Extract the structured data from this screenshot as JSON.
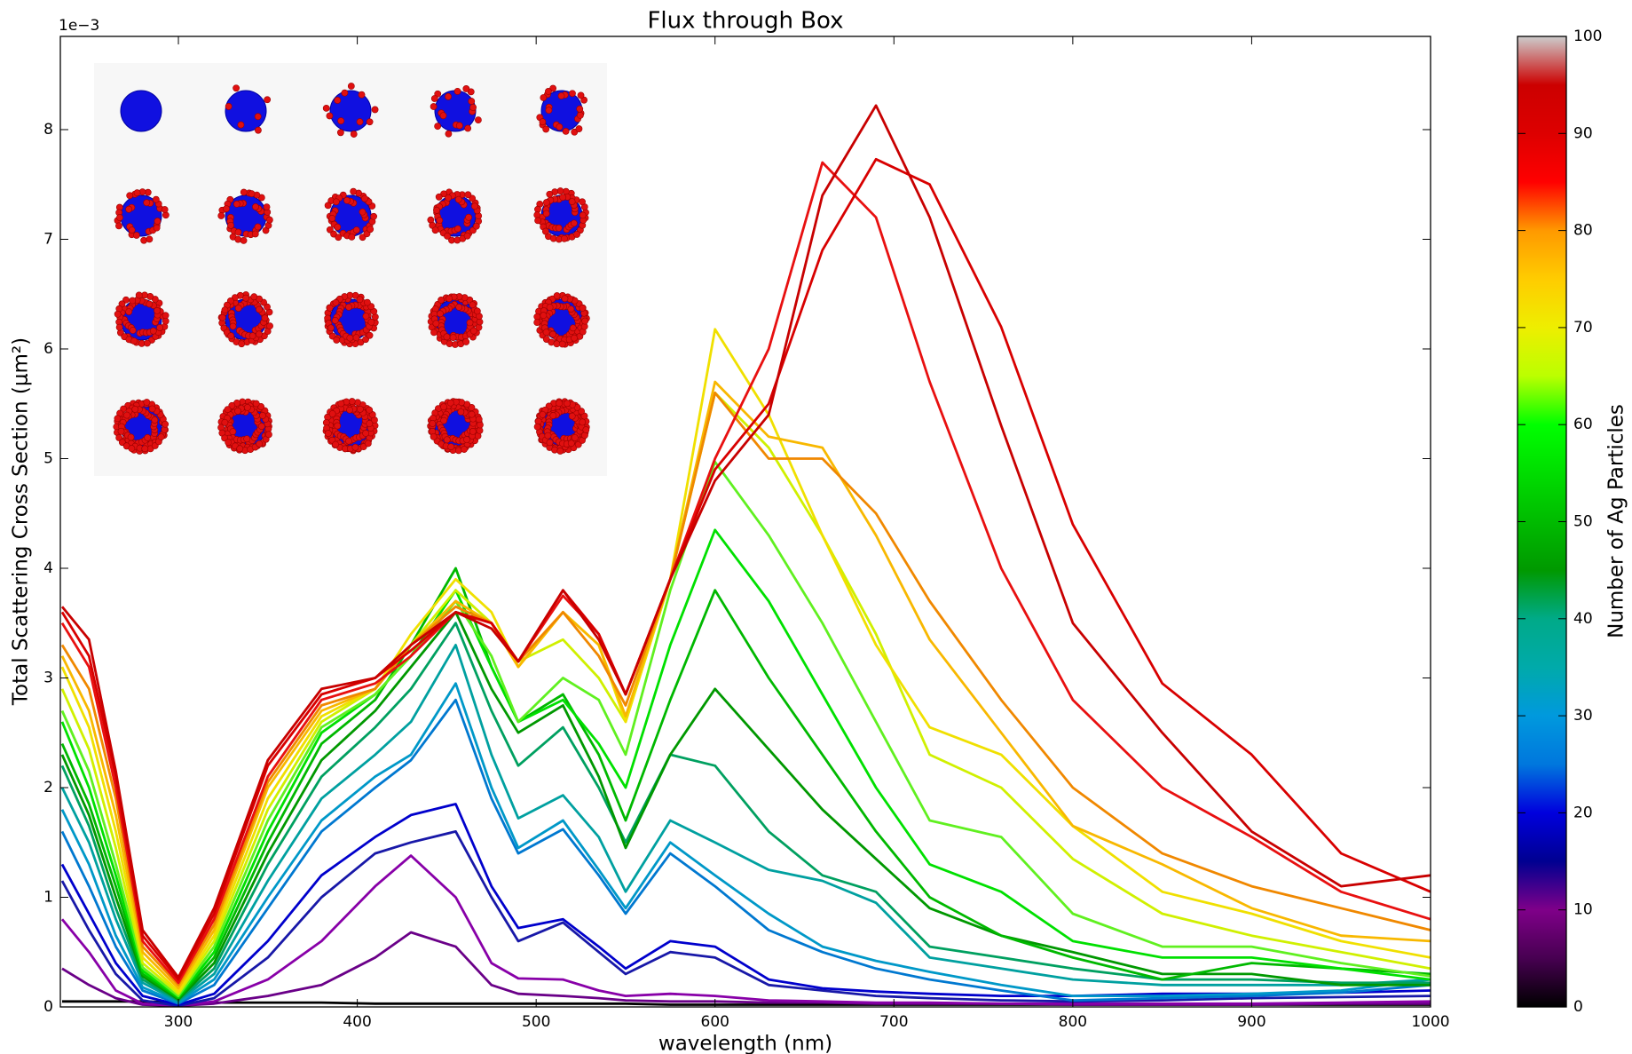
{
  "chart_data": {
    "type": "line",
    "title": "Flux through Box",
    "x_label": "wavelength (nm)",
    "y_label": "Total Scattering Cross Section (μm²)",
    "y_offset_label": "1e−3",
    "x": [
      235,
      250,
      265,
      280,
      300,
      320,
      350,
      380,
      410,
      430,
      455,
      475,
      490,
      515,
      535,
      550,
      575,
      600,
      630,
      660,
      690,
      720,
      760,
      800,
      850,
      900,
      950,
      1000
    ],
    "xlim": [
      234,
      1000
    ],
    "xticks": [
      300,
      400,
      500,
      600,
      700,
      800,
      900,
      1000
    ],
    "ylim": [
      0,
      8.85
    ],
    "yticks": [
      0,
      1,
      2,
      3,
      4,
      5,
      6,
      7,
      8
    ],
    "series": [
      {
        "color": "#000000",
        "values": [
          0.05,
          0.05,
          0.05,
          0.05,
          0.04,
          0.04,
          0.04,
          0.04,
          0.03,
          0.03,
          0.03,
          0.03,
          0.03,
          0.03,
          0.03,
          0.03,
          0.02,
          0.02,
          0.02,
          0.02,
          0.02,
          0.02,
          0.02,
          0.02,
          0.02,
          0.02,
          0.02,
          0.02
        ]
      },
      {
        "color": "#6a0088",
        "values": [
          0.35,
          0.2,
          0.08,
          0.02,
          0.01,
          0.03,
          0.1,
          0.2,
          0.45,
          0.68,
          0.55,
          0.2,
          0.12,
          0.1,
          0.08,
          0.06,
          0.05,
          0.05,
          0.04,
          0.04,
          0.03,
          0.03,
          0.03,
          0.02,
          0.02,
          0.02,
          0.03,
          0.03
        ]
      },
      {
        "color": "#8800a8",
        "values": [
          0.8,
          0.5,
          0.15,
          0.03,
          0.01,
          0.05,
          0.25,
          0.6,
          1.1,
          1.38,
          1.0,
          0.4,
          0.26,
          0.25,
          0.15,
          0.1,
          0.12,
          0.1,
          0.06,
          0.05,
          0.04,
          0.04,
          0.03,
          0.03,
          0.03,
          0.03,
          0.04,
          0.05
        ]
      },
      {
        "color": "#1818a8",
        "values": [
          1.15,
          0.7,
          0.3,
          0.06,
          0.01,
          0.08,
          0.45,
          1.0,
          1.4,
          1.5,
          1.6,
          1.0,
          0.6,
          0.77,
          0.5,
          0.3,
          0.5,
          0.45,
          0.2,
          0.15,
          0.1,
          0.08,
          0.06,
          0.05,
          0.06,
          0.08,
          0.09,
          0.1
        ]
      },
      {
        "color": "#0000cc",
        "values": [
          1.3,
          0.85,
          0.4,
          0.1,
          0.02,
          0.12,
          0.6,
          1.2,
          1.55,
          1.75,
          1.85,
          1.1,
          0.72,
          0.8,
          0.55,
          0.35,
          0.6,
          0.55,
          0.25,
          0.17,
          0.14,
          0.12,
          0.1,
          0.1,
          0.12,
          0.12,
          0.13,
          0.15
        ]
      },
      {
        "color": "#0078d0",
        "values": [
          1.6,
          1.1,
          0.55,
          0.15,
          0.03,
          0.2,
          0.9,
          1.6,
          2.0,
          2.25,
          2.8,
          1.9,
          1.4,
          1.62,
          1.2,
          0.85,
          1.4,
          1.1,
          0.7,
          0.5,
          0.35,
          0.25,
          0.15,
          0.06,
          0.08,
          0.1,
          0.13,
          0.2
        ]
      },
      {
        "color": "#0098c8",
        "values": [
          1.8,
          1.3,
          0.65,
          0.18,
          0.04,
          0.25,
          1.0,
          1.7,
          2.1,
          2.3,
          2.95,
          2.0,
          1.45,
          1.7,
          1.25,
          0.9,
          1.5,
          1.2,
          0.85,
          0.55,
          0.42,
          0.32,
          0.2,
          0.1,
          0.1,
          0.12,
          0.15,
          0.25
        ]
      },
      {
        "color": "#00a0a0",
        "values": [
          2.0,
          1.5,
          0.8,
          0.22,
          0.05,
          0.3,
          1.15,
          1.9,
          2.3,
          2.6,
          3.3,
          2.3,
          1.72,
          1.93,
          1.55,
          1.05,
          1.7,
          1.5,
          1.25,
          1.15,
          0.95,
          0.45,
          0.35,
          0.25,
          0.2,
          0.2,
          0.2,
          0.25
        ]
      },
      {
        "color": "#00a060",
        "values": [
          2.2,
          1.65,
          0.9,
          0.25,
          0.06,
          0.35,
          1.3,
          2.1,
          2.55,
          2.9,
          3.5,
          2.7,
          2.2,
          2.55,
          2.0,
          1.5,
          2.3,
          2.2,
          1.6,
          1.2,
          1.05,
          0.55,
          0.45,
          0.35,
          0.25,
          0.25,
          0.22,
          0.22
        ]
      },
      {
        "color": "#009800",
        "values": [
          2.3,
          1.75,
          1.0,
          0.28,
          0.07,
          0.4,
          1.4,
          2.25,
          2.7,
          3.1,
          3.6,
          2.9,
          2.5,
          2.75,
          2.1,
          1.45,
          2.3,
          2.9,
          2.35,
          1.8,
          1.35,
          0.9,
          0.65,
          0.5,
          0.3,
          0.3,
          0.2,
          0.2
        ]
      },
      {
        "color": "#00b800",
        "values": [
          2.4,
          1.85,
          1.1,
          0.3,
          0.08,
          0.45,
          1.5,
          2.4,
          2.8,
          3.3,
          4.0,
          3.1,
          2.6,
          2.85,
          2.3,
          1.7,
          2.8,
          3.8,
          3.0,
          2.3,
          1.6,
          1.0,
          0.65,
          0.45,
          0.25,
          0.4,
          0.35,
          0.3
        ]
      },
      {
        "color": "#00e000",
        "values": [
          2.6,
          2.0,
          1.2,
          0.33,
          0.09,
          0.5,
          1.6,
          2.5,
          2.85,
          3.2,
          3.8,
          3.1,
          2.6,
          2.8,
          2.4,
          2.0,
          3.3,
          4.35,
          3.7,
          2.85,
          2.0,
          1.3,
          1.05,
          0.6,
          0.45,
          0.45,
          0.35,
          0.25
        ]
      },
      {
        "color": "#60f020",
        "values": [
          2.7,
          2.15,
          1.3,
          0.36,
          0.1,
          0.55,
          1.7,
          2.55,
          2.85,
          3.2,
          3.7,
          3.2,
          2.6,
          3.0,
          2.8,
          2.3,
          3.8,
          4.97,
          4.3,
          3.5,
          2.6,
          1.7,
          1.55,
          0.85,
          0.55,
          0.55,
          0.4,
          0.28
        ]
      },
      {
        "color": "#d0f000",
        "values": [
          2.9,
          2.35,
          1.45,
          0.4,
          0.12,
          0.6,
          1.8,
          2.6,
          2.9,
          3.3,
          3.8,
          3.5,
          3.15,
          3.35,
          3.0,
          2.6,
          3.9,
          5.6,
          5.1,
          4.3,
          3.4,
          2.3,
          2.0,
          1.35,
          0.85,
          0.65,
          0.5,
          0.35
        ]
      },
      {
        "color": "#f0e000",
        "values": [
          3.1,
          2.55,
          1.6,
          0.45,
          0.14,
          0.65,
          1.9,
          2.65,
          2.9,
          3.4,
          3.9,
          3.6,
          3.1,
          3.6,
          3.3,
          2.6,
          3.9,
          6.18,
          5.4,
          4.3,
          3.3,
          2.55,
          2.3,
          1.65,
          1.05,
          0.85,
          0.6,
          0.45
        ]
      },
      {
        "color": "#f8b800",
        "values": [
          3.2,
          2.7,
          1.75,
          0.5,
          0.17,
          0.7,
          2.0,
          2.7,
          2.9,
          3.3,
          3.7,
          3.5,
          3.1,
          3.6,
          3.3,
          2.65,
          3.9,
          5.7,
          5.2,
          5.1,
          4.3,
          3.35,
          2.5,
          1.65,
          1.3,
          0.9,
          0.65,
          0.6
        ]
      },
      {
        "color": "#f08800",
        "values": [
          3.3,
          2.9,
          1.9,
          0.55,
          0.2,
          0.75,
          2.05,
          2.75,
          2.9,
          3.3,
          3.65,
          3.5,
          3.15,
          3.6,
          3.2,
          2.75,
          3.9,
          5.6,
          5.0,
          5.0,
          4.5,
          3.7,
          2.8,
          2.0,
          1.4,
          1.1,
          0.9,
          0.7
        ]
      },
      {
        "color": "#e81010",
        "values": [
          3.5,
          3.1,
          2.0,
          0.6,
          0.22,
          0.8,
          2.1,
          2.8,
          2.95,
          3.2,
          3.6,
          3.5,
          3.15,
          3.75,
          3.4,
          2.85,
          3.9,
          5.0,
          6.0,
          7.7,
          7.2,
          5.7,
          4.0,
          2.8,
          2.0,
          1.55,
          1.05,
          0.8
        ]
      },
      {
        "color": "#d80000",
        "values": [
          3.6,
          3.2,
          2.1,
          0.65,
          0.25,
          0.85,
          2.2,
          2.85,
          3.0,
          3.25,
          3.6,
          3.5,
          3.15,
          3.8,
          3.4,
          2.85,
          3.9,
          4.9,
          5.5,
          6.9,
          7.73,
          7.5,
          6.2,
          4.4,
          2.95,
          2.3,
          1.4,
          1.05
        ]
      },
      {
        "color": "#c80000",
        "values": [
          3.65,
          3.35,
          2.15,
          0.7,
          0.27,
          0.9,
          2.25,
          2.9,
          3.0,
          3.3,
          3.6,
          3.45,
          3.15,
          3.8,
          3.35,
          2.85,
          3.9,
          4.8,
          5.4,
          7.4,
          8.22,
          7.2,
          5.3,
          3.5,
          2.5,
          1.6,
          1.1,
          1.2
        ]
      }
    ],
    "colorbar": {
      "label": "Number of Ag Particles",
      "lim": [
        0,
        100
      ],
      "ticks": [
        0,
        10,
        20,
        30,
        40,
        50,
        60,
        70,
        80,
        90,
        100
      ],
      "colors": [
        "#000000",
        "#470051",
        "#7f0089",
        "#000091",
        "#0000dd",
        "#0077dd",
        "#0099dd",
        "#00aaaa",
        "#00aa88",
        "#009900",
        "#00bb00",
        "#00dd00",
        "#00ff00",
        "#bbff00",
        "#eeee00",
        "#ffcc00",
        "#ff9900",
        "#ff0000",
        "#dd0000",
        "#cc0000",
        "#cccccc"
      ]
    }
  }
}
